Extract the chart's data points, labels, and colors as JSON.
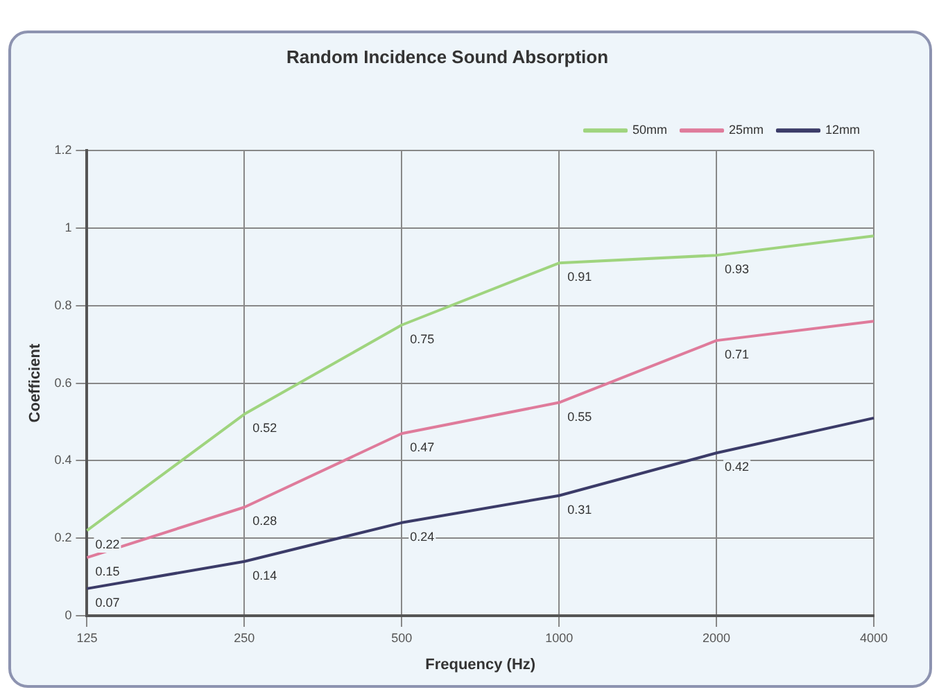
{
  "chart_data": {
    "type": "line",
    "title": "Random Incidence Sound Absorption",
    "xlabel": "Frequency (Hz)",
    "ylabel": "Coefficient",
    "categories": [
      "125",
      "250",
      "500",
      "1000",
      "2000",
      "4000"
    ],
    "series": [
      {
        "name": "50mm",
        "color": "#9fd47e",
        "values": [
          0.22,
          0.52,
          0.75,
          0.91,
          0.93,
          0.98
        ],
        "value_labels": [
          "0.22",
          "0.52",
          "0.75",
          "0.91",
          "0.93",
          null
        ]
      },
      {
        "name": "25mm",
        "color": "#df7b9b",
        "values": [
          0.15,
          0.28,
          0.47,
          0.55,
          0.71,
          0.76
        ],
        "value_labels": [
          "0.15",
          "0.28",
          "0.47",
          "0.55",
          "0.71",
          null
        ]
      },
      {
        "name": "12mm",
        "color": "#3b3b68",
        "values": [
          0.07,
          0.14,
          0.24,
          0.31,
          0.42,
          0.51
        ],
        "value_labels": [
          "0.07",
          "0.14",
          "0.24",
          "0.31",
          "0.42",
          null
        ]
      }
    ],
    "ylim": [
      0,
      1.2
    ],
    "yticks": [
      0,
      0.2,
      0.4,
      0.6,
      0.8,
      1,
      1.2
    ],
    "grid": true,
    "legend": "top right",
    "marker": "none",
    "line_style": "solid"
  }
}
